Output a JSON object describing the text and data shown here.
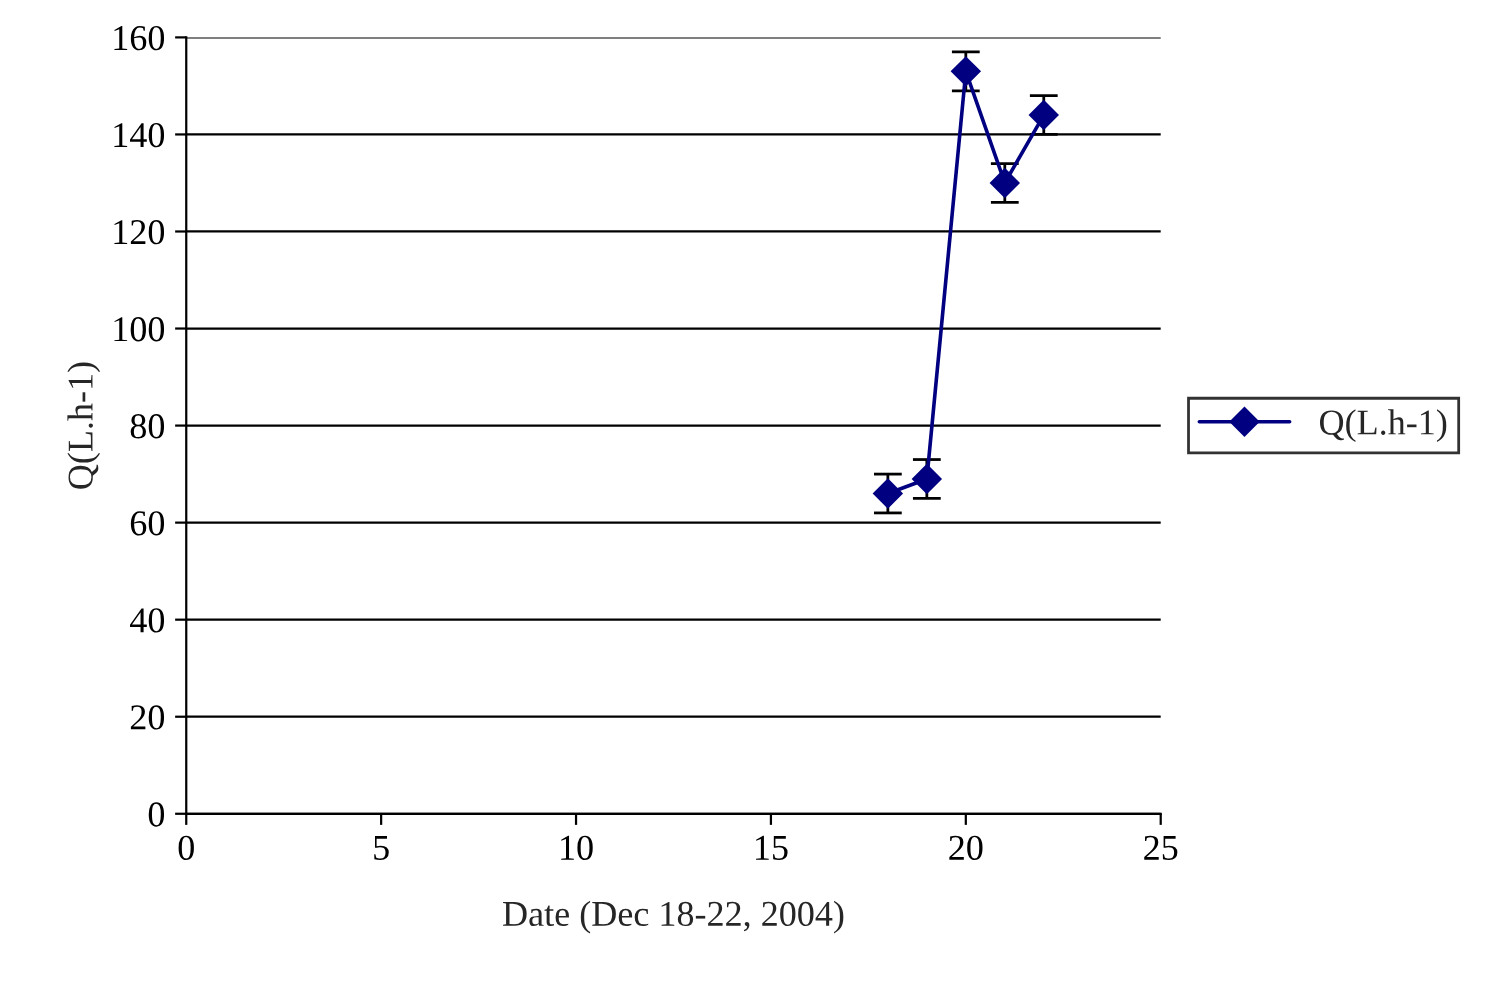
{
  "chart_data": {
    "type": "line",
    "xlabel": "Date (Dec 18-22, 2004)",
    "ylabel": "Q(L.h-1)",
    "x": [
      18,
      19,
      20,
      21,
      22
    ],
    "series": [
      {
        "name": "Q(L.h-1)",
        "color": "#000080",
        "values": [
          66,
          69,
          153,
          130,
          144
        ],
        "errors": [
          4,
          4,
          4,
          4,
          4
        ]
      }
    ],
    "xlim": [
      0,
      25
    ],
    "xticks": [
      0,
      5,
      10,
      15,
      20,
      25
    ],
    "ylim": [
      0,
      160
    ],
    "yticks": [
      0,
      20,
      40,
      60,
      80,
      100,
      120,
      140,
      160
    ],
    "grid": "y",
    "legend": "right",
    "marker": "diamond",
    "line_style": "solid"
  }
}
